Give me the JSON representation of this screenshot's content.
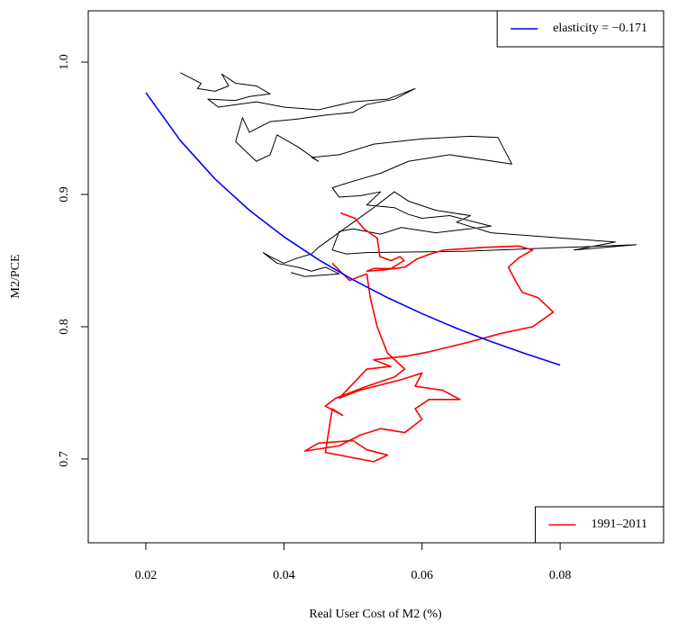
{
  "chart_data": {
    "type": "line",
    "x_label": "Real User Cost of M2 (%)",
    "y_label": "M2/PCE",
    "xlim": [
      0.01166,
      0.09498
    ],
    "ylim": [
      0.6367,
      1.0388
    ],
    "xticks": [
      0.02,
      0.04,
      0.06,
      0.08
    ],
    "yticks": [
      {
        "value": 0.7,
        "label": "0.7"
      },
      {
        "value": 0.8,
        "label": "0.8"
      },
      {
        "value": 0.9,
        "label": "0.9"
      },
      {
        "value": 1.0,
        "label": "1.0"
      }
    ],
    "series": [
      {
        "color": "#000000",
        "width": 1,
        "x": [
          0.025,
          0.028,
          0.0275,
          0.03,
          0.032,
          0.031,
          0.033,
          0.036,
          0.038,
          0.035,
          0.033,
          0.029,
          0.0305,
          0.036,
          0.04,
          0.045,
          0.05,
          0.055,
          0.059,
          0.056,
          0.052,
          0.05,
          0.046,
          0.042,
          0.038,
          0.035,
          0.034,
          0.033,
          0.036,
          0.038,
          0.039,
          0.04,
          0.042,
          0.045,
          0.044,
          0.048,
          0.053,
          0.06,
          0.067,
          0.071,
          0.073,
          0.064,
          0.058,
          0.054,
          0.05,
          0.047,
          0.048,
          0.051,
          0.054,
          0.052,
          0.056,
          0.058,
          0.06,
          0.064,
          0.07,
          0.062,
          0.057,
          0.054,
          0.05,
          0.048,
          0.047,
          0.049,
          0.052,
          0.066,
          0.091,
          0.082,
          0.088,
          0.07,
          0.065,
          0.067,
          0.062,
          0.058,
          0.056,
          0.053,
          0.045,
          0.044,
          0.042,
          0.04,
          0.038,
          0.037,
          0.039,
          0.042,
          0.044,
          0.046,
          0.048,
          0.043,
          0.041
        ],
        "values": [
          0.992,
          0.984,
          0.98,
          0.978,
          0.982,
          0.991,
          0.984,
          0.982,
          0.976,
          0.974,
          0.971,
          0.972,
          0.966,
          0.97,
          0.966,
          0.964,
          0.97,
          0.972,
          0.98,
          0.972,
          0.968,
          0.962,
          0.96,
          0.957,
          0.955,
          0.947,
          0.958,
          0.94,
          0.925,
          0.93,
          0.945,
          0.942,
          0.936,
          0.925,
          0.928,
          0.93,
          0.938,
          0.942,
          0.944,
          0.943,
          0.923,
          0.93,
          0.925,
          0.916,
          0.91,
          0.905,
          0.898,
          0.899,
          0.902,
          0.892,
          0.89,
          0.885,
          0.882,
          0.884,
          0.876,
          0.871,
          0.875,
          0.87,
          0.874,
          0.872,
          0.858,
          0.855,
          0.856,
          0.857,
          0.862,
          0.858,
          0.864,
          0.871,
          0.879,
          0.884,
          0.888,
          0.895,
          0.902,
          0.89,
          0.86,
          0.855,
          0.852,
          0.848,
          0.853,
          0.856,
          0.848,
          0.845,
          0.842,
          0.845,
          0.84,
          0.838,
          0.841
        ]
      },
      {
        "name": "1991–2011",
        "color": "#ff0000",
        "width": 1.6,
        "legend": "bottomright",
        "x": [
          0.0482,
          0.0503,
          0.0516,
          0.0535,
          0.0539,
          0.0555,
          0.0568,
          0.0574,
          0.0555,
          0.053,
          0.052,
          0.0545,
          0.0575,
          0.0592,
          0.0612,
          0.0632,
          0.069,
          0.074,
          0.076,
          0.074,
          0.0725,
          0.0735,
          0.0745,
          0.0768,
          0.079,
          0.076,
          0.0715,
          0.0665,
          0.061,
          0.058,
          0.053,
          0.0555,
          0.052,
          0.048,
          0.051,
          0.057,
          0.06,
          0.059,
          0.063,
          0.0655,
          0.064,
          0.061,
          0.059,
          0.06,
          0.0575,
          0.054,
          0.051,
          0.048,
          0.043,
          0.045,
          0.05,
          0.052,
          0.055,
          0.053,
          0.049,
          0.046,
          0.047,
          0.0485,
          0.046,
          0.0475,
          0.052,
          0.056,
          0.0575,
          0.055,
          0.0535,
          0.0525,
          0.052,
          0.0495,
          0.047
        ],
        "values": [
          0.886,
          0.882,
          0.874,
          0.867,
          0.853,
          0.85,
          0.853,
          0.85,
          0.844,
          0.844,
          0.842,
          0.843,
          0.845,
          0.851,
          0.855,
          0.858,
          0.86,
          0.861,
          0.858,
          0.852,
          0.845,
          0.835,
          0.826,
          0.822,
          0.811,
          0.8,
          0.795,
          0.788,
          0.781,
          0.778,
          0.775,
          0.77,
          0.768,
          0.746,
          0.752,
          0.76,
          0.765,
          0.755,
          0.752,
          0.745,
          0.745,
          0.745,
          0.738,
          0.73,
          0.72,
          0.723,
          0.718,
          0.71,
          0.706,
          0.712,
          0.714,
          0.707,
          0.703,
          0.698,
          0.702,
          0.705,
          0.738,
          0.733,
          0.74,
          0.746,
          0.755,
          0.762,
          0.768,
          0.78,
          0.8,
          0.822,
          0.84,
          0.835,
          0.848
        ]
      },
      {
        "name": "elasticity = −0.171",
        "color": "#0000ff",
        "width": 1.6,
        "legend": "topright",
        "x": [
          0.02,
          0.025,
          0.03,
          0.035,
          0.04,
          0.045,
          0.05,
          0.055,
          0.06,
          0.065,
          0.07,
          0.075,
          0.08
        ],
        "values": [
          0.977,
          0.9407,
          0.9118,
          0.888,
          0.868,
          0.8507,
          0.8355,
          0.822,
          0.8099,
          0.7988,
          0.7888,
          0.7796,
          0.771
        ]
      }
    ]
  }
}
